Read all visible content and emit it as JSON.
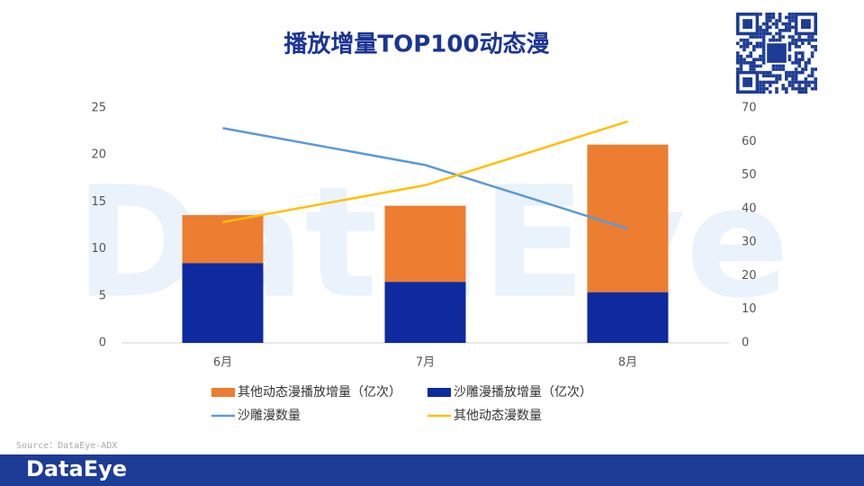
{
  "chart_data": {
    "type": "bar-line",
    "title": "播放增量TOP100动态漫",
    "categories": [
      "6月",
      "7月",
      "8月"
    ],
    "series": [
      {
        "name": "其他动态漫播放增量（亿次）",
        "type": "bar",
        "color": "#ED7D31",
        "values": [
          5.1,
          8.1,
          15.7
        ]
      },
      {
        "name": "沙雕漫播放增量（亿次）",
        "type": "bar",
        "color": "#0F2A9E",
        "values": [
          8.5,
          6.5,
          5.4
        ]
      },
      {
        "name": "沙雕漫数量",
        "type": "line",
        "axis": "y2",
        "color": "#5B9BD5",
        "values": [
          64,
          53,
          34
        ]
      },
      {
        "name": "其他动态漫数量",
        "type": "line",
        "axis": "y2",
        "color": "#FFC000",
        "values": [
          36,
          47,
          66
        ]
      }
    ],
    "ylim": [
      0,
      25
    ],
    "yticks": [
      0,
      5,
      10,
      15,
      20,
      25
    ],
    "y2lim": [
      0,
      70
    ],
    "y2ticks": [
      0,
      10,
      20,
      30,
      40,
      50,
      60,
      70
    ],
    "grid": false,
    "legend": "bottom"
  },
  "source": "Source：DataEye-ADX",
  "brand": "DataEye"
}
